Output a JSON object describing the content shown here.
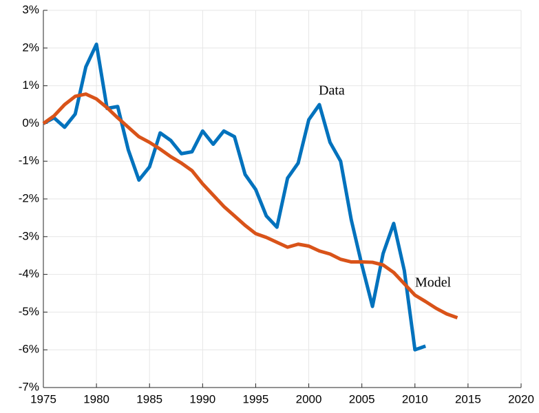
{
  "chart_data": {
    "type": "line",
    "series": [
      {
        "name": "Data",
        "color": "#0072bd",
        "x": [
          1975,
          1976,
          1977,
          1978,
          1979,
          1980,
          1981,
          1982,
          1983,
          1984,
          1985,
          1986,
          1987,
          1988,
          1989,
          1990,
          1991,
          1992,
          1993,
          1994,
          1995,
          1996,
          1997,
          1998,
          1999,
          2000,
          2001,
          2002,
          2003,
          2004,
          2005,
          2006,
          2007,
          2008,
          2009,
          2010,
          2011
        ],
        "values": [
          0,
          0.15,
          -0.1,
          0.25,
          1.5,
          2.1,
          0.4,
          0.45,
          -0.7,
          -1.5,
          -1.15,
          -0.25,
          -0.45,
          -0.8,
          -0.75,
          -0.2,
          -0.55,
          -0.2,
          -0.35,
          -1.35,
          -1.75,
          -2.45,
          -2.75,
          -1.45,
          -1.05,
          0.1,
          0.5,
          -0.5,
          -1.0,
          -2.55,
          -3.75,
          -4.85,
          -3.45,
          -2.65,
          -3.9,
          -6.0,
          -5.9
        ]
      },
      {
        "name": "Model",
        "color": "#d95319",
        "x": [
          1975,
          1976,
          1977,
          1978,
          1979,
          1980,
          1981,
          1982,
          1983,
          1984,
          1985,
          1986,
          1987,
          1988,
          1989,
          1990,
          1991,
          1992,
          1993,
          1994,
          1995,
          1996,
          1997,
          1998,
          1999,
          2000,
          2001,
          2002,
          2003,
          2004,
          2005,
          2006,
          2007,
          2008,
          2009,
          2010,
          2011,
          2012,
          2013,
          2014
        ],
        "values": [
          0,
          0.2,
          0.5,
          0.72,
          0.78,
          0.65,
          0.42,
          0.15,
          -0.1,
          -0.35,
          -0.5,
          -0.68,
          -0.88,
          -1.05,
          -1.25,
          -1.6,
          -1.9,
          -2.2,
          -2.45,
          -2.7,
          -2.92,
          -3.02,
          -3.15,
          -3.28,
          -3.2,
          -3.25,
          -3.38,
          -3.46,
          -3.6,
          -3.67,
          -3.67,
          -3.68,
          -3.75,
          -3.95,
          -4.25,
          -4.55,
          -4.72,
          -4.9,
          -5.05,
          -5.15
        ]
      }
    ],
    "xlim": [
      1975,
      2020
    ],
    "xticks": [
      1975,
      1980,
      1985,
      1990,
      1995,
      2000,
      2005,
      2010,
      2015,
      2020
    ],
    "ylim": [
      -7,
      3
    ],
    "yticks": [
      {
        "value": -7,
        "label": "-7%"
      },
      {
        "value": -6,
        "label": "-6%"
      },
      {
        "value": -5,
        "label": "-5%"
      },
      {
        "value": -4,
        "label": "-4%"
      },
      {
        "value": -3,
        "label": "-3%"
      },
      {
        "value": -2,
        "label": "-2%"
      },
      {
        "value": -1,
        "label": "-1%"
      },
      {
        "value": 0,
        "label": "0%"
      },
      {
        "value": 1,
        "label": "1%"
      },
      {
        "value": 2,
        "label": "2%"
      },
      {
        "value": 3,
        "label": "3%"
      }
    ],
    "grid": true
  }
}
